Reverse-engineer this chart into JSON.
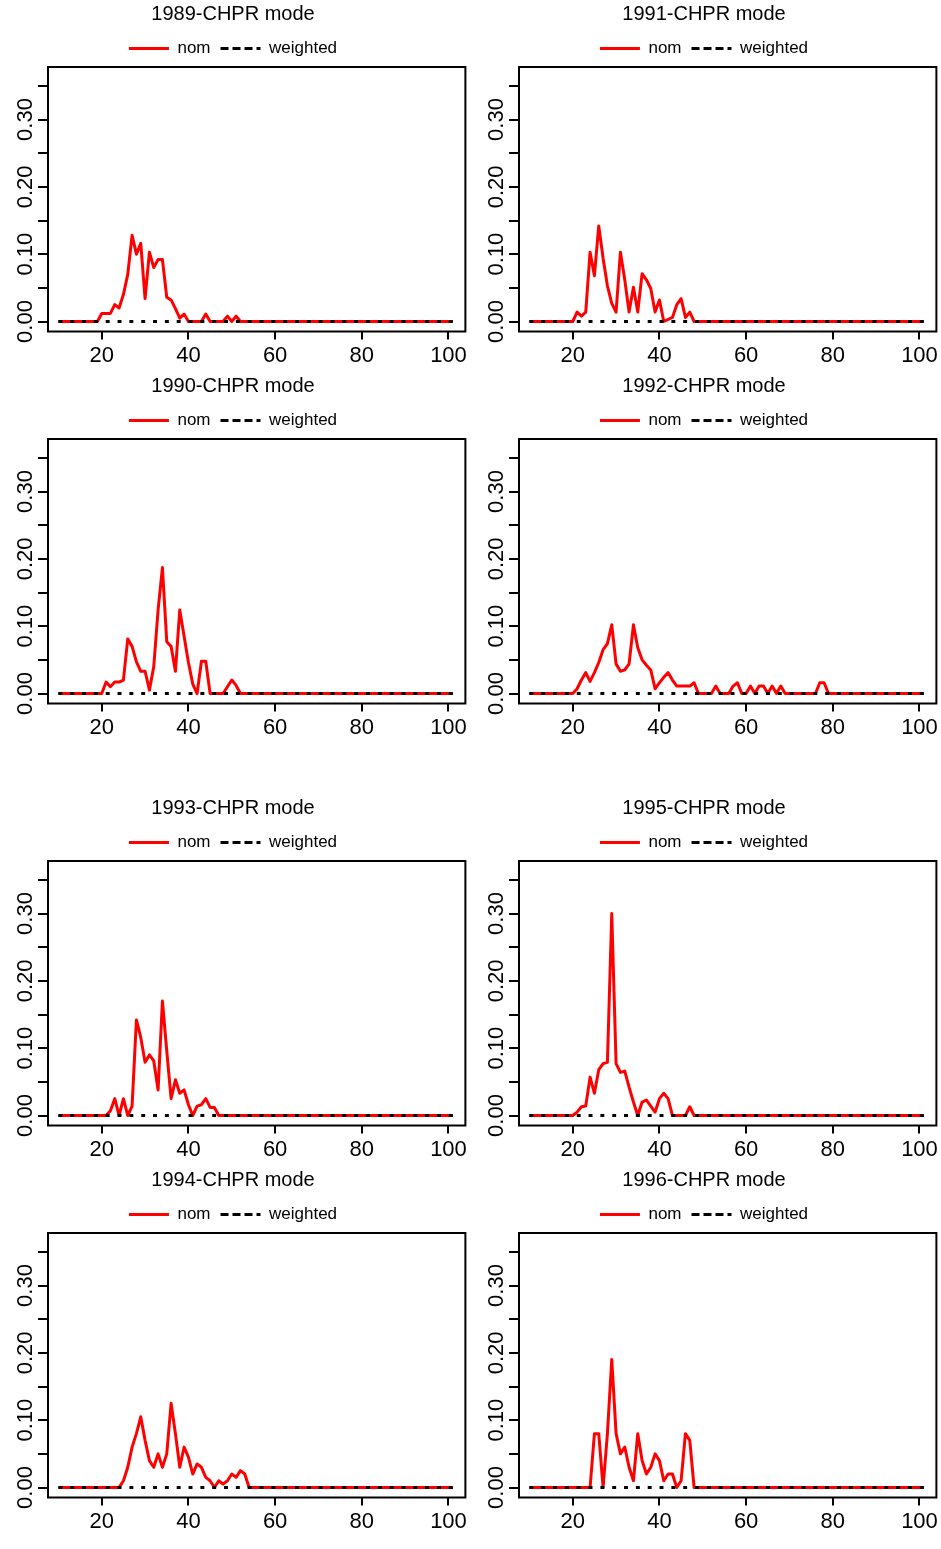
{
  "chart_data": [
    {
      "type": "line",
      "title": "1989-CHPR mode",
      "legend": "top",
      "marker": "none",
      "xlim": [
        7.6,
        103.9
      ],
      "ylim": [
        -0.015,
        0.378
      ],
      "xticks": [
        20,
        40,
        60,
        80,
        100
      ],
      "yticks": [
        {
          "value": 0,
          "label": "0.00"
        },
        {
          "value": 0.05,
          "label": null
        },
        {
          "value": 0.1,
          "label": "0.10"
        },
        {
          "value": 0.15,
          "label": null
        },
        {
          "value": 0.2,
          "label": "0.20"
        },
        {
          "value": 0.25,
          "label": null
        },
        {
          "value": 0.3,
          "label": "0.30"
        },
        {
          "value": 0.35,
          "label": null
        }
      ],
      "series": [
        {
          "name": "nom",
          "color": "#ff0000",
          "line_style": "solid",
          "x": [
            10,
            19,
            20,
            22,
            23,
            24,
            25,
            26,
            27,
            28,
            29,
            30,
            31,
            32,
            33,
            34,
            35,
            36,
            37,
            38,
            39,
            40,
            43,
            44,
            45,
            48,
            49,
            50,
            51,
            52,
            101
          ],
          "values": [
            0,
            0,
            0.012,
            0.012,
            0.025,
            0.02,
            0.04,
            0.07,
            0.128,
            0.1,
            0.116,
            0.034,
            0.103,
            0.08,
            0.092,
            0.092,
            0.036,
            0.032,
            0.019,
            0.005,
            0.011,
            0,
            0,
            0.011,
            0,
            0,
            0.008,
            0,
            0.008,
            0,
            0
          ]
        },
        {
          "name": "weighted",
          "color": "#000000",
          "line_style": "dotted",
          "x": [
            10,
            101
          ],
          "values": [
            0,
            0
          ]
        }
      ]
    },
    {
      "type": "line",
      "title": "1991-CHPR mode",
      "legend": "top",
      "marker": "none",
      "xlim": [
        7.6,
        103.9
      ],
      "ylim": [
        -0.015,
        0.378
      ],
      "xticks": [
        20,
        40,
        60,
        80,
        100
      ],
      "yticks": [
        {
          "value": 0,
          "label": "0.00"
        },
        {
          "value": 0.05,
          "label": null
        },
        {
          "value": 0.1,
          "label": "0.10"
        },
        {
          "value": 0.15,
          "label": null
        },
        {
          "value": 0.2,
          "label": "0.20"
        },
        {
          "value": 0.25,
          "label": null
        },
        {
          "value": 0.3,
          "label": "0.30"
        },
        {
          "value": 0.35,
          "label": null
        }
      ],
      "series": [
        {
          "name": "nom",
          "color": "#ff0000",
          "line_style": "solid",
          "x": [
            10,
            20,
            21,
            22,
            23,
            24,
            25,
            26,
            27,
            28,
            29,
            30,
            31,
            32,
            33,
            34,
            35,
            36,
            37,
            38,
            39,
            40,
            41,
            43,
            44,
            45,
            46,
            47,
            48,
            101
          ],
          "values": [
            0,
            0,
            0.014,
            0.008,
            0.014,
            0.103,
            0.068,
            0.142,
            0.094,
            0.053,
            0.027,
            0.014,
            0.103,
            0.062,
            0.014,
            0.051,
            0.014,
            0.071,
            0.062,
            0.049,
            0.014,
            0.032,
            0,
            0.006,
            0.025,
            0.034,
            0.006,
            0.014,
            0,
            0
          ]
        },
        {
          "name": "weighted",
          "color": "#000000",
          "line_style": "dotted",
          "x": [
            10,
            101
          ],
          "values": [
            0,
            0
          ]
        }
      ]
    },
    {
      "type": "line",
      "title": "1990-CHPR mode",
      "legend": "top",
      "marker": "none",
      "xlim": [
        7.6,
        103.9
      ],
      "ylim": [
        -0.015,
        0.378
      ],
      "xticks": [
        20,
        40,
        60,
        80,
        100
      ],
      "yticks": [
        {
          "value": 0,
          "label": "0.00"
        },
        {
          "value": 0.05,
          "label": null
        },
        {
          "value": 0.1,
          "label": "0.10"
        },
        {
          "value": 0.15,
          "label": null
        },
        {
          "value": 0.2,
          "label": "0.20"
        },
        {
          "value": 0.25,
          "label": null
        },
        {
          "value": 0.3,
          "label": "0.30"
        },
        {
          "value": 0.35,
          "label": null
        }
      ],
      "series": [
        {
          "name": "nom",
          "color": "#ff0000",
          "line_style": "solid",
          "x": [
            10,
            20,
            21,
            22,
            23,
            24,
            25,
            26,
            27,
            28,
            29,
            30,
            31,
            32,
            33,
            34,
            35,
            36,
            37,
            38,
            39,
            40,
            41,
            42,
            43,
            44,
            45,
            48,
            49,
            50,
            51,
            52,
            101
          ],
          "values": [
            0,
            0,
            0.017,
            0.01,
            0.017,
            0.017,
            0.02,
            0.081,
            0.07,
            0.047,
            0.033,
            0.033,
            0.005,
            0.04,
            0.124,
            0.187,
            0.077,
            0.07,
            0.033,
            0.124,
            0.085,
            0.046,
            0.014,
            0,
            0.048,
            0.048,
            0,
            0,
            0.01,
            0.02,
            0.012,
            0,
            0
          ]
        },
        {
          "name": "weighted",
          "color": "#000000",
          "line_style": "dotted",
          "x": [
            10,
            101
          ],
          "values": [
            0,
            0
          ]
        }
      ]
    },
    {
      "type": "line",
      "title": "1992-CHPR mode",
      "legend": "top",
      "marker": "none",
      "xlim": [
        7.6,
        103.9
      ],
      "ylim": [
        -0.015,
        0.378
      ],
      "xticks": [
        20,
        40,
        60,
        80,
        100
      ],
      "yticks": [
        {
          "value": 0,
          "label": "0.00"
        },
        {
          "value": 0.05,
          "label": null
        },
        {
          "value": 0.1,
          "label": "0.10"
        },
        {
          "value": 0.15,
          "label": null
        },
        {
          "value": 0.2,
          "label": "0.20"
        },
        {
          "value": 0.25,
          "label": null
        },
        {
          "value": 0.3,
          "label": "0.30"
        },
        {
          "value": 0.35,
          "label": null
        }
      ],
      "series": [
        {
          "name": "nom",
          "color": "#ff0000",
          "line_style": "solid",
          "x": [
            10,
            20,
            21,
            22,
            23,
            24,
            25,
            26,
            27,
            28,
            29,
            30,
            31,
            32,
            33,
            34,
            35,
            36,
            37,
            38,
            39,
            40,
            41,
            42,
            43,
            44,
            47,
            48,
            49,
            52,
            53,
            54,
            56,
            57,
            58,
            59,
            60,
            61,
            62,
            63,
            64,
            65,
            66,
            67,
            68,
            69,
            76,
            77,
            78,
            79,
            101
          ],
          "values": [
            0,
            0,
            0.007,
            0.02,
            0.031,
            0.018,
            0.031,
            0.046,
            0.065,
            0.074,
            0.102,
            0.044,
            0.033,
            0.035,
            0.044,
            0.102,
            0.068,
            0.05,
            0.042,
            0.035,
            0.007,
            0.016,
            0.024,
            0.031,
            0.02,
            0.011,
            0.011,
            0.016,
            0,
            0,
            0.011,
            0,
            0,
            0.011,
            0.016,
            0,
            0,
            0.011,
            0,
            0.011,
            0.011,
            0,
            0.011,
            0,
            0.011,
            0,
            0,
            0.016,
            0.016,
            0,
            0
          ]
        },
        {
          "name": "weighted",
          "color": "#000000",
          "line_style": "dotted",
          "x": [
            10,
            101
          ],
          "values": [
            0,
            0
          ]
        }
      ]
    },
    {
      "type": "line",
      "title": "1993-CHPR mode",
      "legend": "top",
      "marker": "none",
      "xlim": [
        7.6,
        103.9
      ],
      "ylim": [
        -0.015,
        0.378
      ],
      "xticks": [
        20,
        40,
        60,
        80,
        100
      ],
      "yticks": [
        {
          "value": 0,
          "label": "0.00"
        },
        {
          "value": 0.05,
          "label": null
        },
        {
          "value": 0.1,
          "label": "0.10"
        },
        {
          "value": 0.15,
          "label": null
        },
        {
          "value": 0.2,
          "label": "0.20"
        },
        {
          "value": 0.25,
          "label": null
        },
        {
          "value": 0.3,
          "label": "0.30"
        },
        {
          "value": 0.35,
          "label": null
        }
      ],
      "series": [
        {
          "name": "nom",
          "color": "#ff0000",
          "line_style": "solid",
          "x": [
            10,
            21,
            22,
            23,
            24,
            25,
            26,
            27,
            28,
            29,
            30,
            31,
            32,
            33,
            34,
            35,
            36,
            37,
            38,
            39,
            40,
            41,
            42,
            43,
            44,
            45,
            46,
            47,
            101
          ],
          "values": [
            0,
            0,
            0.007,
            0.025,
            0,
            0.025,
            0,
            0.014,
            0.142,
            0.116,
            0.079,
            0.09,
            0.081,
            0.038,
            0.17,
            0.096,
            0.025,
            0.053,
            0.033,
            0.038,
            0.016,
            0,
            0.014,
            0.016,
            0.025,
            0.012,
            0.012,
            0,
            0
          ]
        },
        {
          "name": "weighted",
          "color": "#000000",
          "line_style": "dotted",
          "x": [
            10,
            101
          ],
          "values": [
            0,
            0
          ]
        }
      ]
    },
    {
      "type": "line",
      "title": "1995-CHPR mode",
      "legend": "top",
      "marker": "none",
      "xlim": [
        7.6,
        103.9
      ],
      "ylim": [
        -0.015,
        0.378
      ],
      "xticks": [
        20,
        40,
        60,
        80,
        100
      ],
      "yticks": [
        {
          "value": 0,
          "label": "0.00"
        },
        {
          "value": 0.05,
          "label": null
        },
        {
          "value": 0.1,
          "label": "0.10"
        },
        {
          "value": 0.15,
          "label": null
        },
        {
          "value": 0.2,
          "label": "0.20"
        },
        {
          "value": 0.25,
          "label": null
        },
        {
          "value": 0.3,
          "label": "0.30"
        },
        {
          "value": 0.35,
          "label": null
        }
      ],
      "series": [
        {
          "name": "nom",
          "color": "#ff0000",
          "line_style": "solid",
          "x": [
            10,
            20,
            21,
            22,
            23,
            24,
            25,
            26,
            27,
            28,
            29,
            30,
            31,
            32,
            33,
            34,
            35,
            36,
            37,
            38,
            39,
            40,
            41,
            42,
            43,
            46,
            47,
            48,
            101
          ],
          "values": [
            0,
            0,
            0.005,
            0.013,
            0.014,
            0.057,
            0.033,
            0.068,
            0.077,
            0.079,
            0.3,
            0.077,
            0.064,
            0.066,
            0.042,
            0.02,
            0,
            0.02,
            0.023,
            0.014,
            0.005,
            0.025,
            0.033,
            0.025,
            0,
            0,
            0.013,
            0,
            0
          ]
        },
        {
          "name": "weighted",
          "color": "#000000",
          "line_style": "dotted",
          "x": [
            10,
            101
          ],
          "values": [
            0,
            0
          ]
        }
      ]
    },
    {
      "type": "line",
      "title": "1994-CHPR mode",
      "legend": "top",
      "marker": "none",
      "xlim": [
        7.6,
        103.9
      ],
      "ylim": [
        -0.015,
        0.378
      ],
      "xticks": [
        20,
        40,
        60,
        80,
        100
      ],
      "yticks": [
        {
          "value": 0,
          "label": "0.00"
        },
        {
          "value": 0.05,
          "label": null
        },
        {
          "value": 0.1,
          "label": "0.10"
        },
        {
          "value": 0.15,
          "label": null
        },
        {
          "value": 0.2,
          "label": "0.20"
        },
        {
          "value": 0.25,
          "label": null
        },
        {
          "value": 0.3,
          "label": "0.30"
        },
        {
          "value": 0.35,
          "label": null
        }
      ],
      "series": [
        {
          "name": "nom",
          "color": "#ff0000",
          "line_style": "solid",
          "x": [
            10,
            24,
            25,
            26,
            27,
            28,
            29,
            30,
            31,
            32,
            33,
            34,
            35,
            36,
            37,
            38,
            39,
            40,
            41,
            42,
            43,
            44,
            45,
            46,
            47,
            48,
            49,
            50,
            51,
            52,
            53,
            54,
            101
          ],
          "values": [
            0,
            0,
            0.01,
            0.03,
            0.06,
            0.08,
            0.105,
            0.07,
            0.04,
            0.03,
            0.05,
            0.03,
            0.05,
            0.125,
            0.08,
            0.03,
            0.06,
            0.045,
            0.02,
            0.035,
            0.03,
            0.015,
            0.01,
            0,
            0.01,
            0.005,
            0.01,
            0.02,
            0.015,
            0.025,
            0.02,
            0,
            0
          ]
        },
        {
          "name": "weighted",
          "color": "#000000",
          "line_style": "dotted",
          "x": [
            10,
            101
          ],
          "values": [
            0,
            0
          ]
        }
      ]
    },
    {
      "type": "line",
      "title": "1996-CHPR mode",
      "legend": "top",
      "marker": "none",
      "xlim": [
        7.6,
        103.9
      ],
      "ylim": [
        -0.015,
        0.378
      ],
      "xticks": [
        20,
        40,
        60,
        80,
        100
      ],
      "yticks": [
        {
          "value": 0,
          "label": "0.00"
        },
        {
          "value": 0.05,
          "label": null
        },
        {
          "value": 0.1,
          "label": "0.10"
        },
        {
          "value": 0.15,
          "label": null
        },
        {
          "value": 0.2,
          "label": "0.20"
        },
        {
          "value": 0.25,
          "label": null
        },
        {
          "value": 0.3,
          "label": "0.30"
        },
        {
          "value": 0.35,
          "label": null
        }
      ],
      "series": [
        {
          "name": "nom",
          "color": "#ff0000",
          "line_style": "solid",
          "x": [
            10,
            24,
            25,
            26,
            27,
            28,
            29,
            30,
            31,
            32,
            33,
            34,
            35,
            36,
            37,
            38,
            39,
            40,
            41,
            42,
            43,
            44,
            45,
            46,
            47,
            48,
            101
          ],
          "values": [
            0,
            0,
            0.08,
            0.08,
            0,
            0.08,
            0.19,
            0.08,
            0.05,
            0.06,
            0.03,
            0.01,
            0.08,
            0.04,
            0.02,
            0.03,
            0.05,
            0.04,
            0.01,
            0.02,
            0.02,
            0,
            0.01,
            0.08,
            0.07,
            0,
            0
          ]
        },
        {
          "name": "weighted",
          "color": "#000000",
          "line_style": "dotted",
          "x": [
            10,
            101
          ],
          "values": [
            0,
            0
          ]
        }
      ]
    }
  ]
}
